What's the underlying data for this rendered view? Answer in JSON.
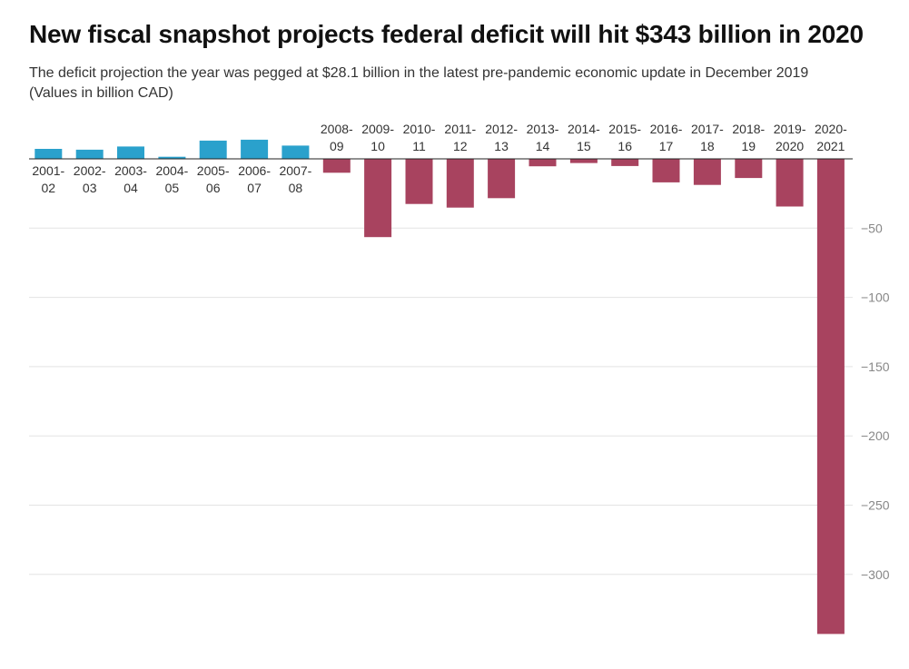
{
  "header": {
    "title": "New fiscal snapshot projects federal deficit will hit $343 billion in 2020",
    "subtitle": "The deficit projection the year was pegged at $28.1 billion in the latest pre-pandemic economic update in December 2019",
    "units_note": "(Values in billion CAD)"
  },
  "colors": {
    "surplus": "#2aa1cc",
    "deficit": "#a8435f",
    "grid": "#e3e3e3",
    "axis": "#222222",
    "tick_text": "#888888",
    "label_text": "#333333"
  },
  "chart_data": {
    "type": "bar",
    "title": "New fiscal snapshot projects federal deficit will hit $343 billion in 2020",
    "subtitle": "The deficit projection the year was pegged at $28.1 billion in the latest pre-pandemic economic update in December 2019",
    "xlabel": "",
    "ylabel": "",
    "ylim": [
      -343,
      20
    ],
    "grid": true,
    "y_ticks": [
      -50,
      -100,
      -150,
      -200,
      -250,
      -300
    ],
    "y_tick_labels": [
      "−50",
      "−100",
      "−150",
      "−200",
      "−250",
      "−300"
    ],
    "categories": [
      [
        "2001-",
        "02"
      ],
      [
        "2002-",
        "03"
      ],
      [
        "2003-",
        "04"
      ],
      [
        "2004-",
        "05"
      ],
      [
        "2005-",
        "06"
      ],
      [
        "2006-",
        "07"
      ],
      [
        "2007-",
        "08"
      ],
      [
        "2008-",
        "09"
      ],
      [
        "2009-",
        "10"
      ],
      [
        "2010-",
        "11"
      ],
      [
        "2011-",
        "12"
      ],
      [
        "2012-",
        "13"
      ],
      [
        "2013-",
        "14"
      ],
      [
        "2014-",
        "15"
      ],
      [
        "2015-",
        "16"
      ],
      [
        "2016-",
        "17"
      ],
      [
        "2017-",
        "18"
      ],
      [
        "2018-",
        "19"
      ],
      [
        "2019-",
        "2020"
      ],
      [
        "2020-",
        "2021"
      ]
    ],
    "values": [
      7.2,
      6.6,
      8.9,
      1.5,
      13.2,
      13.8,
      9.6,
      -10.0,
      -56.5,
      -32.6,
      -35.2,
      -28.4,
      -5.4,
      -3.0,
      -5.2,
      -17.0,
      -18.8,
      -13.8,
      -34.4,
      -343.0
    ]
  }
}
